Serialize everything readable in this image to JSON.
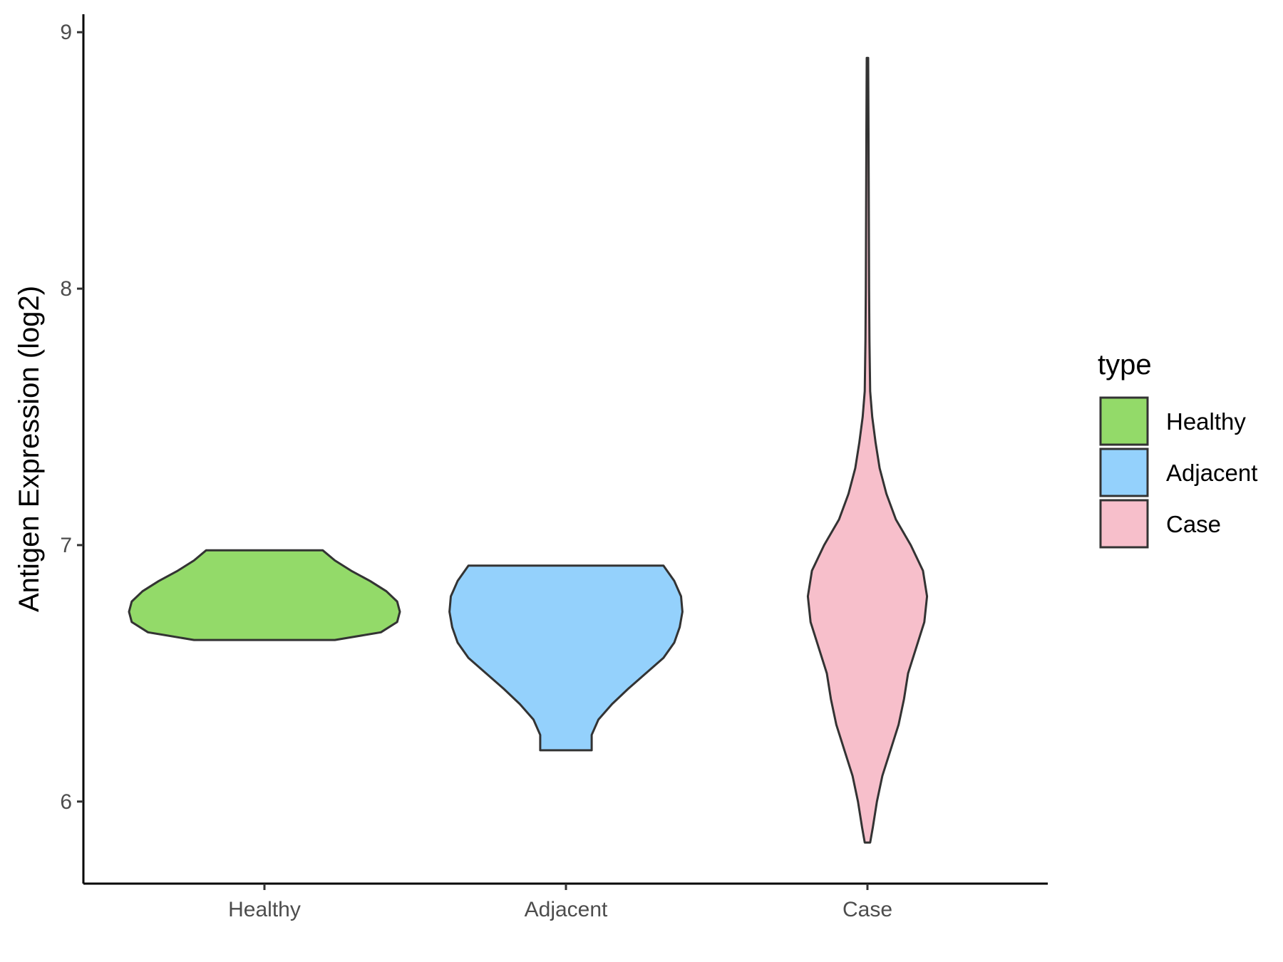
{
  "chart_data": {
    "type": "violin",
    "ylabel": "Antigen Expression (log2)",
    "xlabel": "",
    "ylim": [
      5.68,
      9.07
    ],
    "yticks": [
      6,
      7,
      8,
      9
    ],
    "categories": [
      "Healthy",
      "Adjacent",
      "Case"
    ],
    "legend": {
      "title": "type",
      "position": "right",
      "entries": [
        "Healthy",
        "Adjacent",
        "Case"
      ]
    },
    "series": [
      {
        "name": "Healthy",
        "color": "#93DA69",
        "min": 6.63,
        "max": 6.98,
        "density": [
          [
            6.63,
            0.52
          ],
          [
            6.66,
            0.86
          ],
          [
            6.7,
            0.98
          ],
          [
            6.74,
            1.0
          ],
          [
            6.78,
            0.98
          ],
          [
            6.82,
            0.9
          ],
          [
            6.86,
            0.78
          ],
          [
            6.9,
            0.64
          ],
          [
            6.94,
            0.52
          ],
          [
            6.98,
            0.43
          ]
        ]
      },
      {
        "name": "Adjacent",
        "color": "#94D1FC",
        "min": 6.2,
        "max": 6.92,
        "density": [
          [
            6.2,
            0.19
          ],
          [
            6.26,
            0.19
          ],
          [
            6.32,
            0.24
          ],
          [
            6.38,
            0.34
          ],
          [
            6.44,
            0.46
          ],
          [
            6.5,
            0.59
          ],
          [
            6.56,
            0.72
          ],
          [
            6.62,
            0.8
          ],
          [
            6.68,
            0.84
          ],
          [
            6.74,
            0.86
          ],
          [
            6.8,
            0.85
          ],
          [
            6.86,
            0.8
          ],
          [
            6.92,
            0.72
          ]
        ]
      },
      {
        "name": "Case",
        "color": "#F7BFCB",
        "min": 5.84,
        "max": 8.9,
        "density": [
          [
            5.84,
            0.02
          ],
          [
            5.9,
            0.04
          ],
          [
            6.0,
            0.07
          ],
          [
            6.1,
            0.11
          ],
          [
            6.2,
            0.17
          ],
          [
            6.3,
            0.23
          ],
          [
            6.4,
            0.27
          ],
          [
            6.5,
            0.3
          ],
          [
            6.6,
            0.36
          ],
          [
            6.7,
            0.42
          ],
          [
            6.8,
            0.44
          ],
          [
            6.9,
            0.41
          ],
          [
            7.0,
            0.32
          ],
          [
            7.1,
            0.21
          ],
          [
            7.2,
            0.14
          ],
          [
            7.3,
            0.09
          ],
          [
            7.4,
            0.06
          ],
          [
            7.5,
            0.035
          ],
          [
            7.6,
            0.02
          ],
          [
            7.8,
            0.015
          ],
          [
            8.0,
            0.012
          ],
          [
            8.3,
            0.01
          ],
          [
            8.6,
            0.008
          ],
          [
            8.9,
            0.005
          ]
        ]
      }
    ]
  }
}
